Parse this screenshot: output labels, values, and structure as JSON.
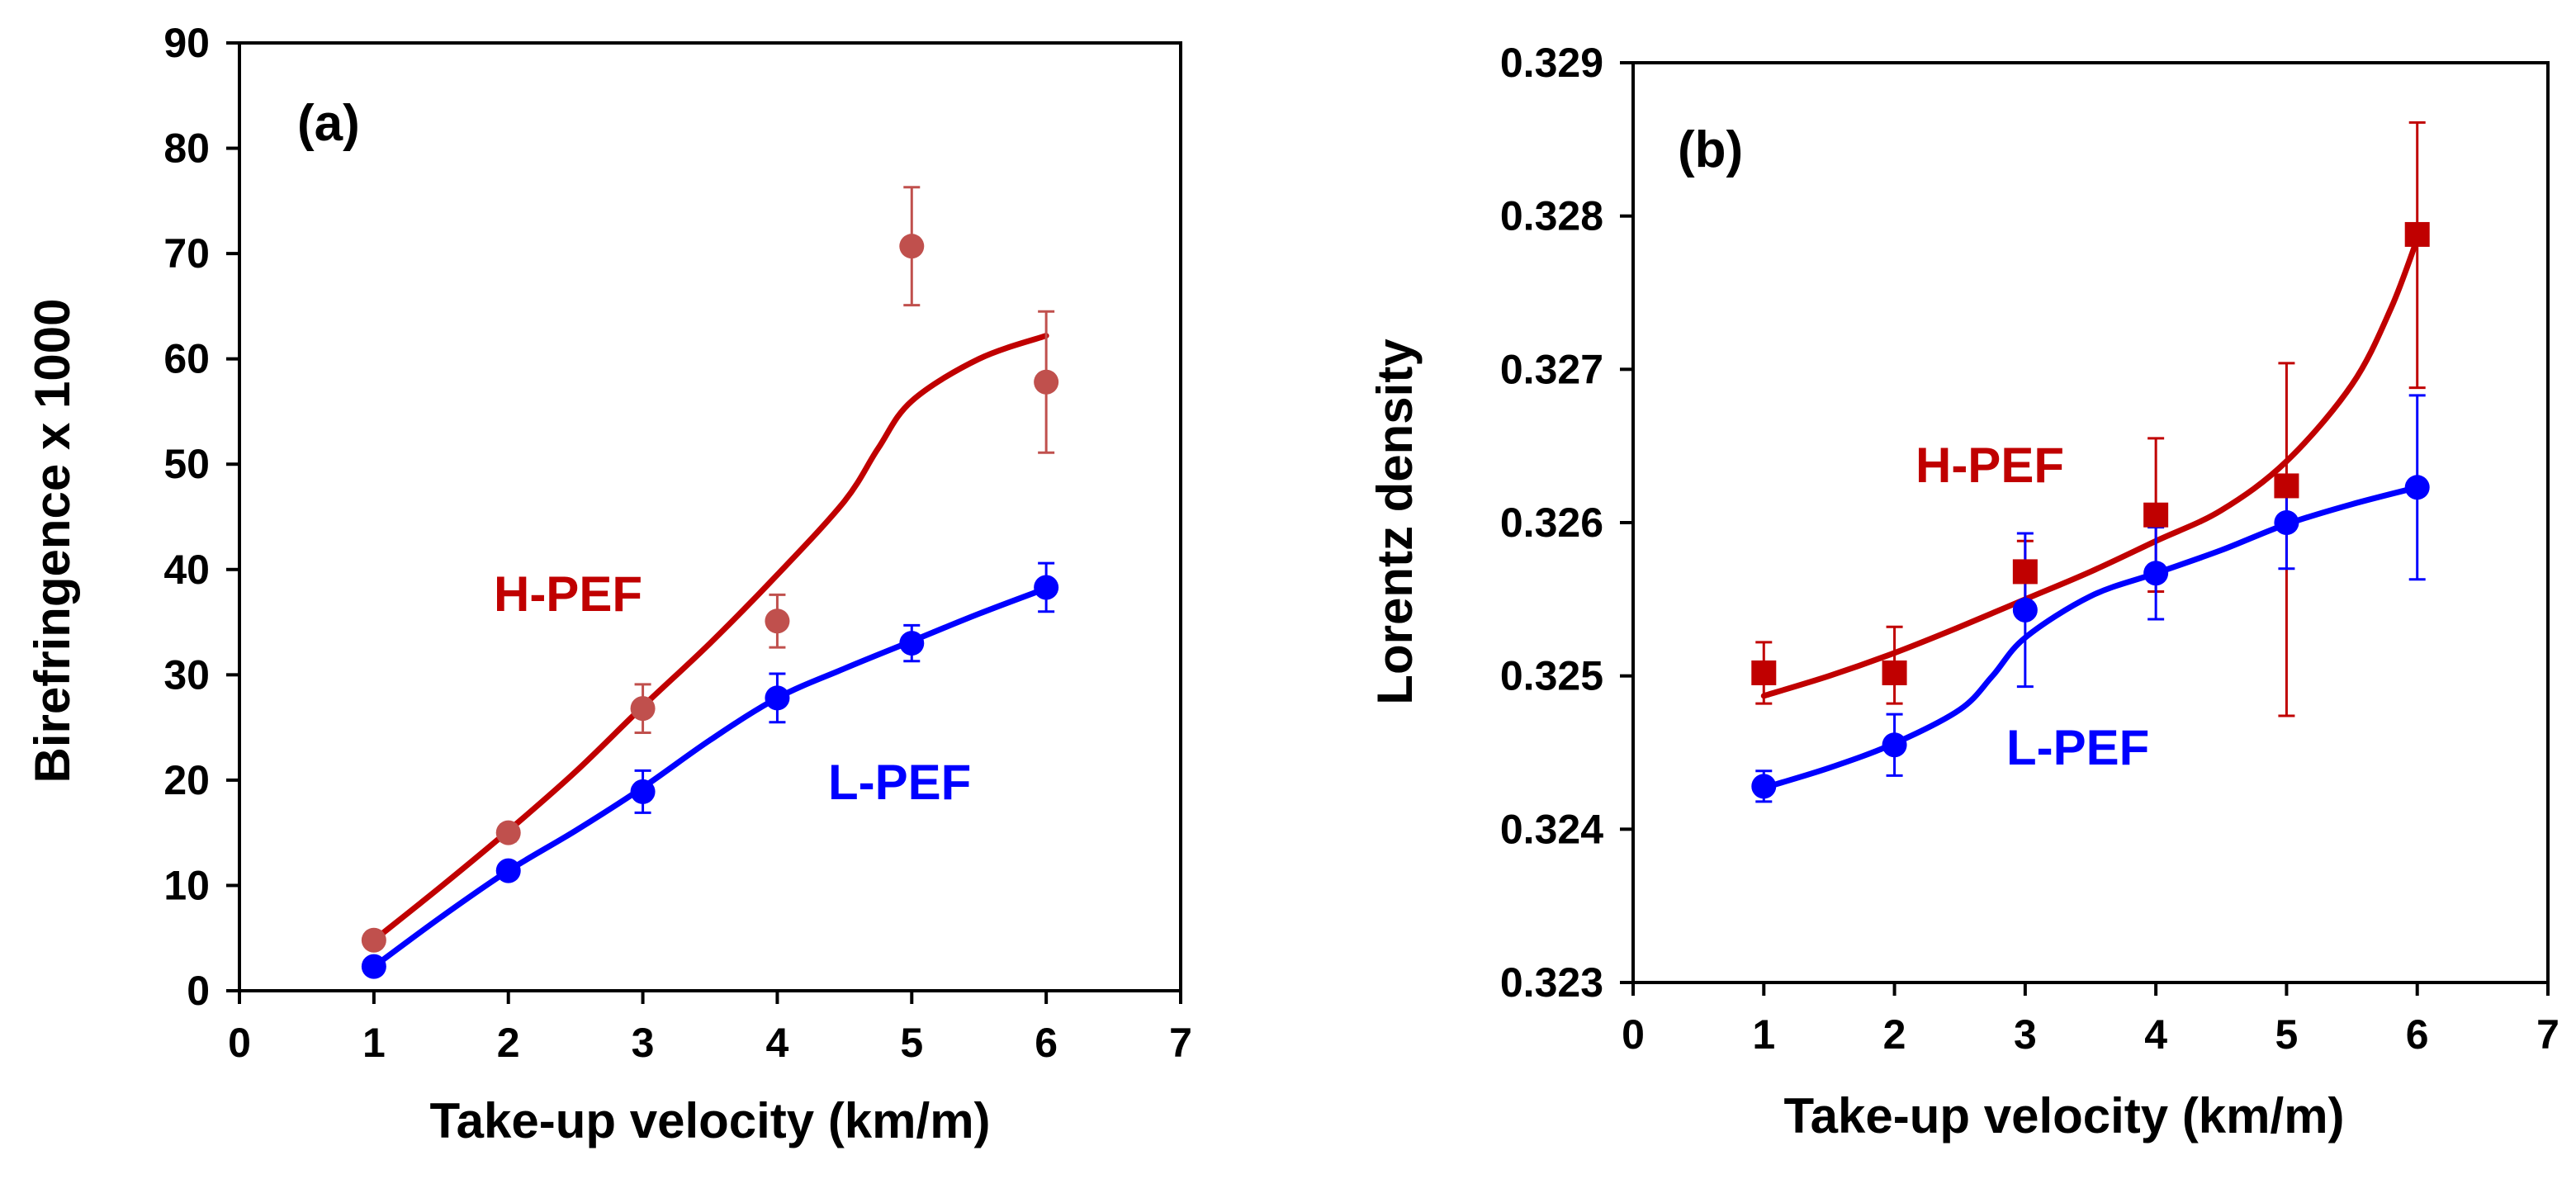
{
  "chart_data": [
    {
      "type": "scatter",
      "panel_label": "(a)",
      "title": "",
      "xlabel": "Take-up velocity (km/m)",
      "ylabel": "Birefringence x 1000",
      "xlim": [
        0,
        7
      ],
      "ylim": [
        0,
        90
      ],
      "xticks": [
        "0",
        "1",
        "2",
        "3",
        "4",
        "5",
        "6",
        "7"
      ],
      "yticks": [
        "0",
        "10",
        "20",
        "30",
        "40",
        "50",
        "60",
        "70",
        "80",
        "90"
      ],
      "grid": false,
      "series": [
        {
          "name": "H-PEF",
          "label": "H-PEF",
          "color": "#c00000",
          "marker_color": "#c0504d",
          "marker": "circle",
          "x": [
            1,
            2,
            3,
            4,
            5,
            6
          ],
          "values": [
            4.8,
            15.0,
            26.8,
            35.1,
            70.7,
            57.8
          ],
          "error": [
            0.7,
            0.8,
            2.3,
            2.5,
            5.6,
            6.7
          ],
          "fit_x": [
            1.0,
            1.5,
            2.0,
            2.5,
            3.0,
            3.5,
            4.0,
            4.5,
            4.75,
            5.0,
            5.5,
            6.0
          ],
          "fit_y": [
            4.8,
            9.9,
            15.2,
            20.8,
            27.0,
            33.0,
            39.5,
            46.5,
            51.5,
            56.0,
            60.0,
            62.2
          ]
        },
        {
          "name": "L-PEF",
          "label": "L-PEF",
          "color": "#0000ff",
          "marker_color": "#0000ff",
          "marker": "circle",
          "x": [
            1,
            2,
            3,
            4,
            5,
            6
          ],
          "values": [
            2.3,
            11.4,
            18.9,
            27.8,
            33.0,
            38.3
          ],
          "error": [
            0.5,
            0.6,
            2.0,
            2.3,
            1.7,
            2.3
          ],
          "fit_x": [
            1.0,
            1.5,
            2.0,
            2.5,
            3.0,
            3.5,
            4.0,
            4.5,
            5.0,
            5.5,
            6.0
          ],
          "fit_y": [
            2.3,
            7.0,
            11.4,
            15.2,
            19.3,
            23.8,
            27.8,
            30.6,
            33.2,
            35.8,
            38.2
          ]
        }
      ]
    },
    {
      "type": "scatter",
      "panel_label": "(b)",
      "title": "",
      "xlabel": "Take-up velocity (km/m)",
      "ylabel": "Lorentz density",
      "xlim": [
        0,
        7
      ],
      "ylim": [
        0.323,
        0.329
      ],
      "xticks": [
        "0",
        "1",
        "2",
        "3",
        "4",
        "5",
        "6",
        "7"
      ],
      "yticks": [
        "0.323",
        "0.324",
        "0.325",
        "0.326",
        "0.327",
        "0.328",
        "0.329"
      ],
      "grid": false,
      "series": [
        {
          "name": "H-PEF",
          "label": "H-PEF",
          "color": "#c00000",
          "marker_color": "#c00000",
          "marker": "square",
          "x": [
            1,
            2,
            3,
            4,
            5,
            6
          ],
          "values": [
            0.32502,
            0.32502,
            0.32568,
            0.32605,
            0.32624,
            0.32788
          ],
          "error": [
            0.0002,
            0.0003,
            0.0002,
            0.0005,
            0.0008,
            0.00073
          ],
          "fit_x": [
            1.0,
            1.5,
            2.0,
            2.5,
            3.0,
            3.5,
            4.0,
            4.5,
            5.0,
            5.5,
            5.8,
            6.0
          ],
          "fit_y": [
            0.32487,
            0.325,
            0.32515,
            0.32532,
            0.3255,
            0.32568,
            0.32588,
            0.32608,
            0.3264,
            0.3269,
            0.3274,
            0.32785
          ],
          "error_bottom": [
            0.0002,
            0.0002,
            0.0002,
            0.0005,
            0.0015,
            0.001
          ]
        },
        {
          "name": "L-PEF",
          "label": "L-PEF",
          "color": "#0000ff",
          "marker_color": "#0000ff",
          "marker": "circle",
          "x": [
            1,
            2,
            3,
            4,
            5,
            6
          ],
          "values": [
            0.32428,
            0.32455,
            0.32543,
            0.32567,
            0.326,
            0.32623
          ],
          "error": [
            0.0001,
            0.0002,
            0.0005,
            0.0003,
            0.0003,
            0.0006
          ],
          "fit_x": [
            1.0,
            1.5,
            2.0,
            2.5,
            2.75,
            3.0,
            3.5,
            4.0,
            4.5,
            5.0,
            5.5,
            6.0
          ],
          "fit_y": [
            0.32427,
            0.3244,
            0.32456,
            0.32478,
            0.325,
            0.32525,
            0.32552,
            0.32567,
            0.32582,
            0.32599,
            0.32612,
            0.32623
          ]
        }
      ]
    }
  ]
}
